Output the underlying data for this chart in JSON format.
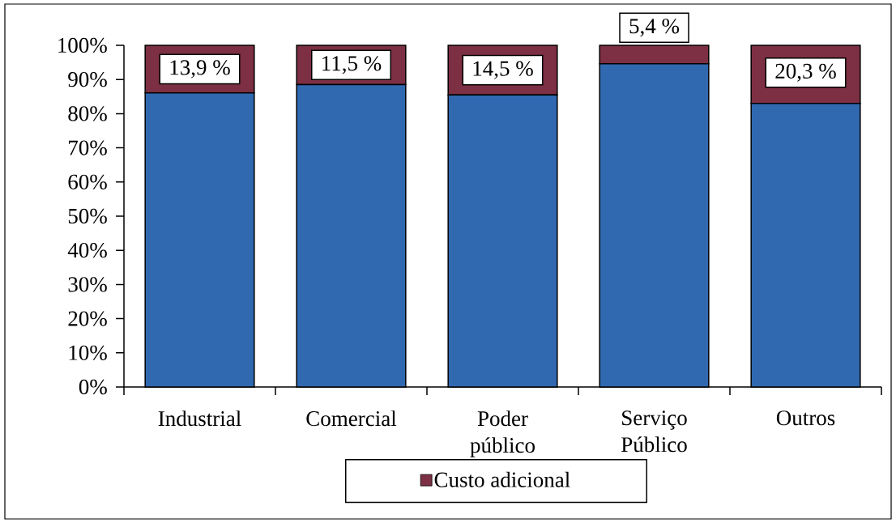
{
  "chart_data": {
    "type": "bar",
    "stacked": true,
    "legend": "bottom",
    "categories": [
      "Industrial",
      "Comercial",
      "Poder público",
      "Serviço Público",
      "Outros"
    ],
    "series": [
      {
        "color": "#3069b0",
        "values": [
          86.1,
          88.5,
          85.5,
          94.6,
          83
        ]
      },
      {
        "name": "Custo adicional",
        "color": "#7d2f43",
        "values": [
          13.9,
          11.5,
          14.5,
          5.4,
          17
        ],
        "value_labels": [
          "13,9 %",
          "11,5 %",
          "14,5 %",
          "5,4 %",
          null
        ]
      }
    ],
    "annotations": [
      {
        "text": "20,3 %",
        "x": "Outros",
        "y": 100
      }
    ],
    "ylim": [
      0,
      100
    ],
    "yticks": [
      {
        "value": 0,
        "label": "0%"
      },
      {
        "value": 10,
        "label": "10%"
      },
      {
        "value": 20,
        "label": "20%"
      },
      {
        "value": 30,
        "label": "30%"
      },
      {
        "value": 40,
        "label": "40%"
      },
      {
        "value": 50,
        "label": "50%"
      },
      {
        "value": 60,
        "label": "60%"
      },
      {
        "value": 70,
        "label": "70%"
      },
      {
        "value": 80,
        "label": "80%"
      },
      {
        "value": 90,
        "label": "90%"
      },
      {
        "value": 100,
        "label": "100%"
      }
    ]
  }
}
